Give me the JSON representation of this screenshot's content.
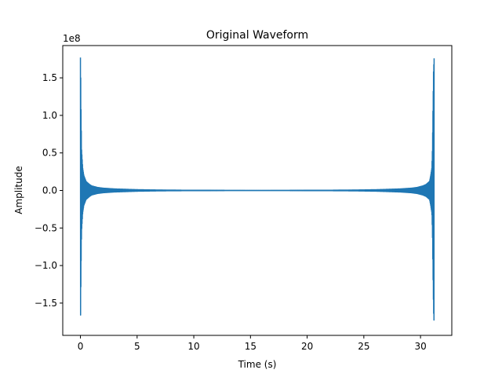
{
  "chart_data": {
    "type": "line",
    "title": "Original Waveform",
    "xlabel": "Time (s)",
    "ylabel": "Amplitude",
    "y_offset_label": "1e8",
    "y_scale": 100000000,
    "xlim": [
      -1.56,
      32.76
    ],
    "ylim": [
      -1.93,
      1.93
    ],
    "x_ticks": [
      0,
      5,
      10,
      15,
      20,
      25,
      30
    ],
    "x_tick_labels": [
      "0",
      "5",
      "10",
      "15",
      "20",
      "25",
      "30"
    ],
    "y_ticks": [
      -1.5,
      -1.0,
      -0.5,
      0.0,
      0.5,
      1.0,
      1.5
    ],
    "y_tick_labels": [
      "−1.5",
      "−1.0",
      "−0.5",
      "0.0",
      "0.5",
      "1.0",
      "1.5"
    ],
    "grid": false,
    "series": [
      {
        "color": "#1f77b4",
        "envelope": {
          "x": [
            0.0,
            0.02,
            0.05,
            0.1,
            0.2,
            0.3,
            0.5,
            0.8,
            1.0,
            1.5,
            2.0,
            3.0,
            5.0,
            7.0,
            10.0,
            15.6,
            21.2,
            24.2,
            26.2,
            28.2,
            29.2,
            29.7,
            30.2,
            30.5,
            30.8,
            30.9,
            31.0,
            31.05,
            31.1,
            31.15,
            31.2
          ],
          "upper": [
            1.77,
            1.6,
            1.1,
            0.55,
            0.3,
            0.2,
            0.12,
            0.08,
            0.06,
            0.04,
            0.03,
            0.02,
            0.01,
            0.005,
            0.002,
            0.001,
            0.002,
            0.005,
            0.01,
            0.02,
            0.03,
            0.04,
            0.06,
            0.08,
            0.12,
            0.2,
            0.3,
            0.55,
            1.1,
            1.6,
            1.76
          ],
          "lower": [
            -1.77,
            -1.6,
            -1.1,
            -0.55,
            -0.3,
            -0.2,
            -0.12,
            -0.08,
            -0.06,
            -0.04,
            -0.03,
            -0.02,
            -0.01,
            -0.005,
            -0.002,
            -0.001,
            -0.002,
            -0.005,
            -0.01,
            -0.02,
            -0.03,
            -0.04,
            -0.06,
            -0.08,
            -0.12,
            -0.2,
            -0.3,
            -0.55,
            -1.1,
            -1.6,
            -1.77
          ]
        }
      }
    ]
  }
}
